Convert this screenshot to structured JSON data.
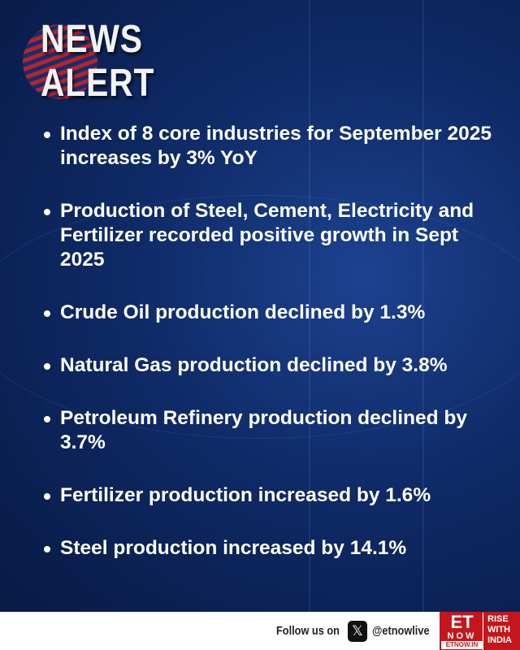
{
  "header": {
    "logo_line1": "NEWS",
    "logo_line2": "ALERT"
  },
  "bullets": [
    "Index of 8 core industries for September 2025 increases by 3% YoY",
    "Production of Steel, Cement, Electricity and Fertilizer recorded positive growth in Sept 2025",
    "Crude Oil production declined by 1.3%",
    "Natural Gas production declined by 3.8%",
    "Petroleum Refinery production declined by 3.7%",
    "Fertilizer production increased by 1.6%",
    "Steel production increased by 14.1%"
  ],
  "footer": {
    "follow_label": "Follow us on",
    "x_icon": "x-logo-icon",
    "handle": "@etnowlive",
    "brand": {
      "et": "ET",
      "now": "NOW",
      "site": "ETNOW.IN",
      "tagline1": "RISE",
      "tagline2": "WITH",
      "tagline3": "INDIA"
    }
  },
  "colors": {
    "background": "#0f2a66",
    "brand_red": "#c4161c",
    "text": "#ffffff"
  }
}
